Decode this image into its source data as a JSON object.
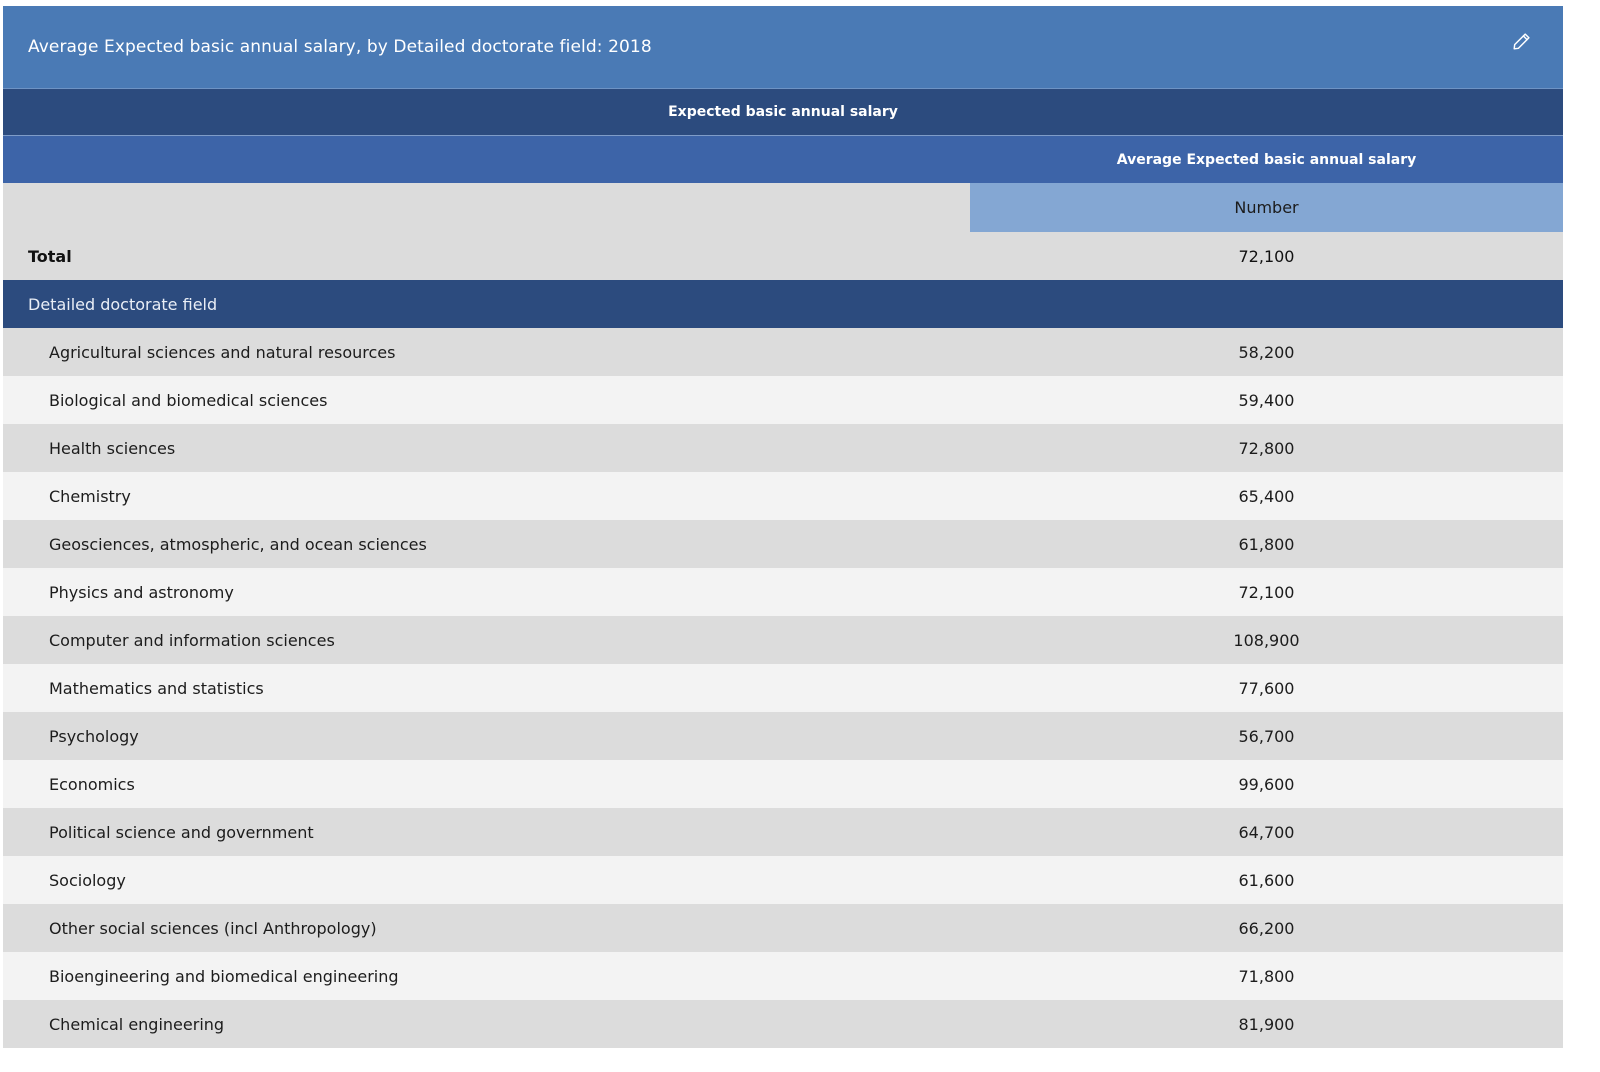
{
  "table": {
    "title": "Average Expected basic annual salary, by Detailed doctorate field: 2018",
    "edit_icon": "pencil-icon",
    "group_header": "Expected basic annual salary",
    "sub_header": "Average Expected basic annual salary",
    "unit_header": "Number",
    "total": {
      "label": "Total",
      "value": "72,100"
    },
    "section_label": "Detailed doctorate field",
    "rows": [
      {
        "label": "Agricultural sciences and natural resources",
        "value": "58,200"
      },
      {
        "label": "Biological and biomedical sciences",
        "value": "59,400"
      },
      {
        "label": "Health sciences",
        "value": "72,800"
      },
      {
        "label": "Chemistry",
        "value": "65,400"
      },
      {
        "label": "Geosciences, atmospheric, and ocean sciences",
        "value": "61,800"
      },
      {
        "label": "Physics and astronomy",
        "value": "72,100"
      },
      {
        "label": "Computer and information sciences",
        "value": "108,900"
      },
      {
        "label": "Mathematics and statistics",
        "value": "77,600"
      },
      {
        "label": "Psychology",
        "value": "56,700"
      },
      {
        "label": "Economics",
        "value": "99,600"
      },
      {
        "label": "Political science and government",
        "value": "64,700"
      },
      {
        "label": "Sociology",
        "value": "61,600"
      },
      {
        "label": "Other social sciences (incl Anthropology)",
        "value": "66,200"
      },
      {
        "label": "Bioengineering and biomedical engineering",
        "value": "71,800"
      },
      {
        "label": "Chemical engineering",
        "value": "81,900"
      }
    ]
  },
  "colors": {
    "title_bar": "#4a7ab5",
    "header_dark": "#2c4b7e",
    "header_mid": "#3d64a8",
    "unit_cell": "#84a7d3",
    "row_odd": "#dcdcdc",
    "row_even": "#f3f3f3"
  }
}
